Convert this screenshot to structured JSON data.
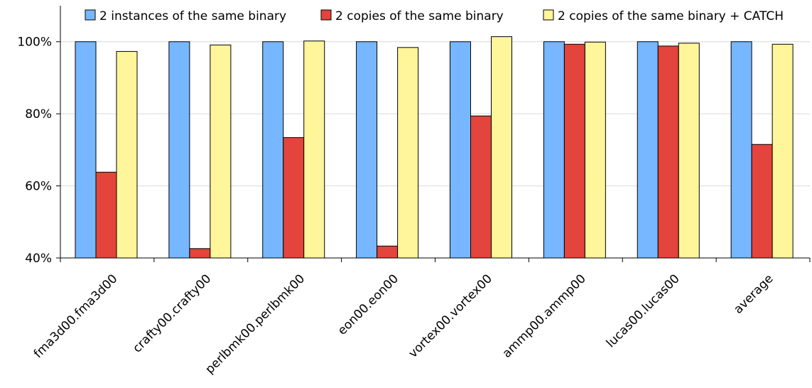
{
  "chart_data": {
    "type": "bar",
    "categories": [
      "fma3d00.fma3d00",
      "crafty00.crafty00",
      "perlbmk00.perlbmk00",
      "eon00.eon00",
      "vortex00.vortex00",
      "ammp00.ammp00",
      "lucas00.lucas00",
      "average"
    ],
    "series": [
      {
        "name": "2 instances of the same binary",
        "color": "#76b7ff",
        "values": [
          100,
          100,
          100,
          100,
          100,
          100,
          100,
          100
        ]
      },
      {
        "name": "2 copies of the same binary",
        "color": "#e3443b",
        "values": [
          63.8,
          42.6,
          73.4,
          43.3,
          79.4,
          99.3,
          98.8,
          71.5
        ]
      },
      {
        "name": "2 copies of the same binary + CATCH",
        "color": "#fff59a",
        "values": [
          97.3,
          99.1,
          100.2,
          98.4,
          101.4,
          99.9,
          99.6,
          99.3
        ]
      }
    ],
    "ylim": [
      40,
      110
    ],
    "yticks": [
      40,
      60,
      80,
      100
    ],
    "ytick_labels": [
      "40%",
      "60%",
      "80%",
      "100%"
    ],
    "title": "",
    "xlabel": "",
    "ylabel": "",
    "grid": true,
    "legend_position": "top"
  }
}
